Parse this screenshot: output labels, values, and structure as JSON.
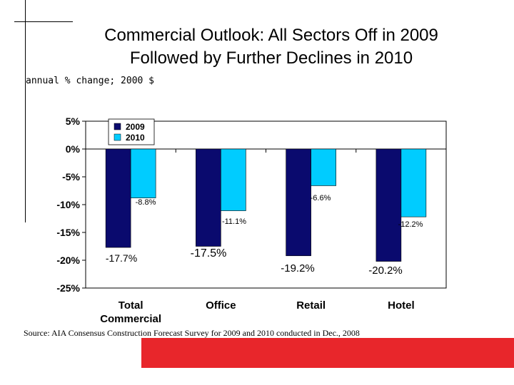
{
  "slide": {
    "title_line1": "Commercial Outlook: All Sectors Off in 2009",
    "title_line2": "Followed by Further Declines in 2010",
    "subtitle": "annual % change; 2000 $",
    "source": "Source: AIA Consensus Construction Forecast Survey for 2009 and 2010 conducted in Dec., 2008",
    "accent_color": "#e8262b"
  },
  "chart_data": {
    "type": "bar",
    "categories": [
      [
        "Total",
        "Commercial"
      ],
      [
        "Office"
      ],
      [
        "Retail"
      ],
      [
        "Hotel"
      ]
    ],
    "series": [
      {
        "name": "2009",
        "color": "#0a0a6e",
        "values": [
          -17.7,
          -17.5,
          -19.2,
          -20.2
        ],
        "labels": [
          "-17.7%",
          "-17.5%",
          "-19.2%",
          "-20.2%"
        ]
      },
      {
        "name": "2010",
        "color": "#00ccff",
        "values": [
          -8.8,
          -11.1,
          -6.6,
          -12.2
        ],
        "labels": [
          "-8.8%",
          "-11.1%",
          "-6.6%",
          "-12.2%"
        ]
      }
    ],
    "ylim": [
      -25,
      5
    ],
    "yticks": [
      5,
      0,
      -5,
      -10,
      -15,
      -20,
      -25
    ],
    "ytick_labels": [
      "5%",
      "0%",
      "-5%",
      "-10%",
      "-15%",
      "-20%",
      "-25%"
    ],
    "legend_position": "top-left",
    "grid": false
  }
}
